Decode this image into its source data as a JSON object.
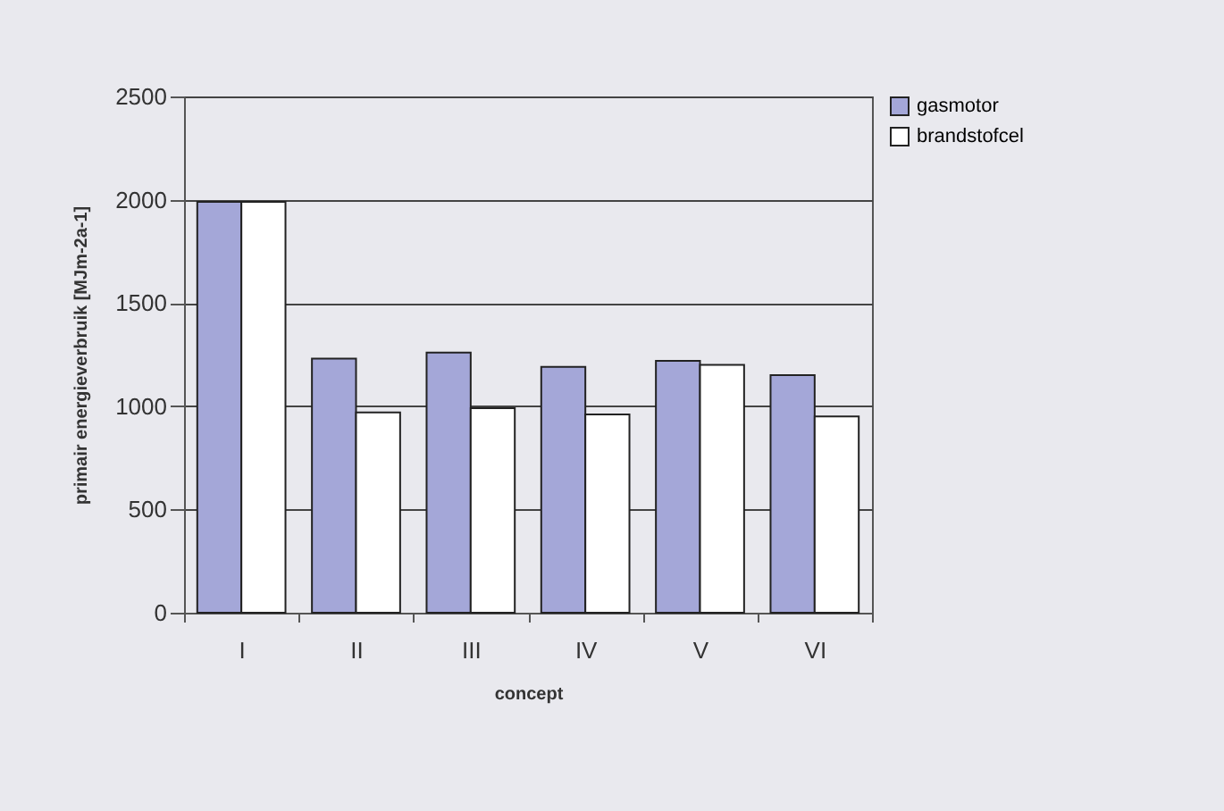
{
  "chart_data": {
    "type": "bar",
    "xlabel": "concept",
    "ylabel": "primair energieverbruik [MJm-2a-1]",
    "categories": [
      "I",
      "II",
      "III",
      "IV",
      "V",
      "VI"
    ],
    "series": [
      {
        "name": "gasmotor",
        "color": "#a4a7d8",
        "values": [
          1990,
          1230,
          1260,
          1190,
          1220,
          1150
        ]
      },
      {
        "name": "brandstofcel",
        "color": "#ffffff",
        "values": [
          1990,
          970,
          990,
          960,
          1200,
          950
        ]
      }
    ],
    "ylim": [
      0,
      2500
    ],
    "yticks": [
      0,
      500,
      1000,
      1500,
      2000,
      2500
    ],
    "grid": "y",
    "legend": "right"
  }
}
